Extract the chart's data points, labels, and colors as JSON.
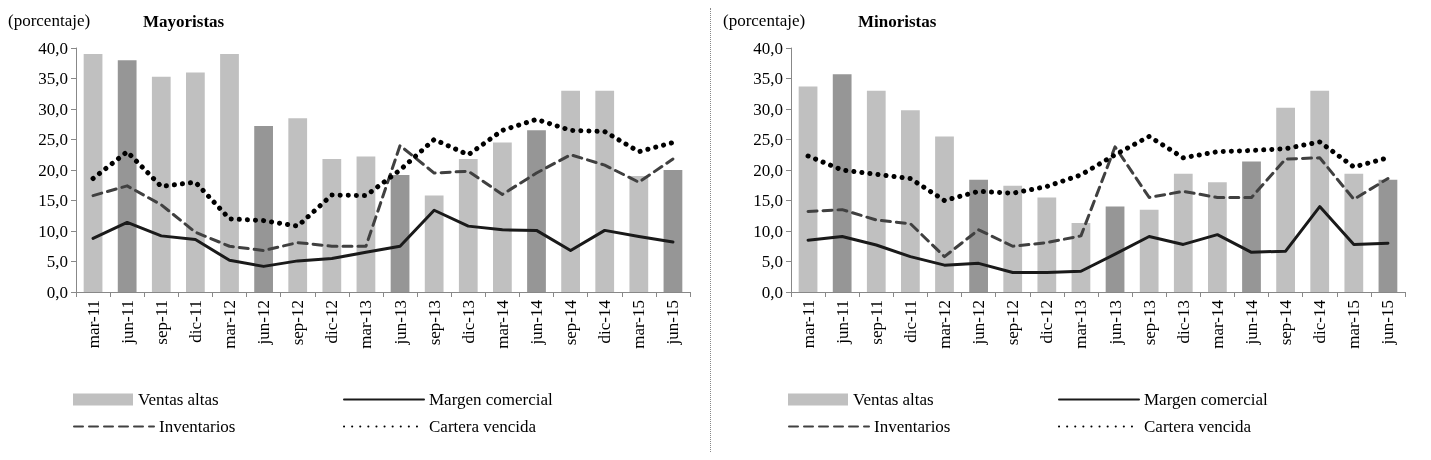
{
  "chart_data": [
    {
      "type": "bar",
      "title": "Mayoristas",
      "ylabel": "(porcentaje)",
      "legend": "bottom",
      "grid": false,
      "marker": "none",
      "categories": [
        "mar-11",
        "jun-11",
        "sep-11",
        "dic-11",
        "mar-12",
        "jun-12",
        "sep-12",
        "dic-12",
        "mar-13",
        "jun-13",
        "sep-13",
        "dic-13",
        "mar-14",
        "jun-14",
        "sep-14",
        "dic-14",
        "mar-15",
        "jun-15"
      ],
      "ylim": [
        0,
        40
      ],
      "yticks": [
        {
          "value": 0,
          "label": "0,0"
        },
        {
          "value": 5,
          "label": "5,0"
        },
        {
          "value": 10,
          "label": "10,0"
        },
        {
          "value": 15,
          "label": "15,0"
        },
        {
          "value": 20,
          "label": "20,0"
        },
        {
          "value": 25,
          "label": "25,0"
        },
        {
          "value": 30,
          "label": "30,0"
        },
        {
          "value": 35,
          "label": "35,0"
        },
        {
          "value": 40,
          "label": "40,0"
        }
      ],
      "series": [
        {
          "name": "Ventas altas",
          "color": "#c0c0c0",
          "colors": [
            "#c0c0c0",
            "#969696",
            "#c0c0c0",
            "#c0c0c0",
            "#c0c0c0",
            "#969696",
            "#c0c0c0",
            "#c0c0c0",
            "#c0c0c0",
            "#969696",
            "#c0c0c0",
            "#c0c0c0",
            "#c0c0c0",
            "#969696",
            "#c0c0c0",
            "#c0c0c0",
            "#c0c0c0",
            "#969696"
          ],
          "values": [
            39.0,
            38.0,
            35.3,
            36.0,
            39.0,
            27.2,
            28.5,
            21.8,
            22.2,
            19.2,
            15.8,
            21.8,
            24.5,
            26.5,
            33.0,
            33.0,
            19.0,
            20.0
          ]
        },
        {
          "name": "Margen comercial",
          "type": "line",
          "color": "#1a1a1a",
          "line_style": "solid",
          "values": [
            8.8,
            11.4,
            9.2,
            8.6,
            5.2,
            4.2,
            5.1,
            5.5,
            6.5,
            7.5,
            13.4,
            10.8,
            10.2,
            10.1,
            6.8,
            10.1,
            9.1,
            8.2
          ]
        },
        {
          "name": "Inventarios",
          "type": "line",
          "color": "#404040",
          "line_style": "dashed",
          "values": [
            15.8,
            17.4,
            14.3,
            9.8,
            7.5,
            6.8,
            8.1,
            7.5,
            7.5,
            24.0,
            19.5,
            19.8,
            16.0,
            19.5,
            22.5,
            20.8,
            18.0,
            21.8
          ]
        },
        {
          "name": "Cartera vencida",
          "type": "line",
          "color": "#000000",
          "line_style": "dotted",
          "values": [
            18.6,
            23.0,
            17.3,
            18.0,
            12.0,
            11.7,
            10.8,
            15.9,
            15.8,
            20.0,
            25.0,
            22.5,
            26.5,
            28.3,
            26.5,
            26.3,
            23.0,
            24.5
          ]
        }
      ]
    },
    {
      "type": "bar",
      "title": "Minoristas",
      "ylabel": "(porcentaje)",
      "legend": "bottom",
      "grid": false,
      "marker": "none",
      "categories": [
        "mar-11",
        "jun-11",
        "sep-11",
        "dic-11",
        "mar-12",
        "jun-12",
        "sep-12",
        "dic-12",
        "mar-13",
        "jun-13",
        "sep-13",
        "dic-13",
        "mar-14",
        "jun-14",
        "sep-14",
        "dic-14",
        "mar-15",
        "jun-15"
      ],
      "ylim": [
        0,
        40
      ],
      "yticks": [
        {
          "value": 0,
          "label": "0,0"
        },
        {
          "value": 5,
          "label": "5,0"
        },
        {
          "value": 10,
          "label": "10,0"
        },
        {
          "value": 15,
          "label": "15,0"
        },
        {
          "value": 20,
          "label": "20,0"
        },
        {
          "value": 25,
          "label": "25,0"
        },
        {
          "value": 30,
          "label": "30,0"
        },
        {
          "value": 35,
          "label": "35,0"
        },
        {
          "value": 40,
          "label": "40,0"
        }
      ],
      "series": [
        {
          "name": "Ventas altas",
          "color": "#c0c0c0",
          "colors": [
            "#c0c0c0",
            "#969696",
            "#c0c0c0",
            "#c0c0c0",
            "#c0c0c0",
            "#969696",
            "#c0c0c0",
            "#c0c0c0",
            "#c0c0c0",
            "#969696",
            "#c0c0c0",
            "#c0c0c0",
            "#c0c0c0",
            "#969696",
            "#c0c0c0",
            "#c0c0c0",
            "#c0c0c0",
            "#969696"
          ],
          "values": [
            33.7,
            35.7,
            33.0,
            29.8,
            25.5,
            18.4,
            17.4,
            15.5,
            11.3,
            14.0,
            13.5,
            19.4,
            18.0,
            21.4,
            30.2,
            33.0,
            19.4,
            18.4
          ]
        },
        {
          "name": "Margen comercial",
          "type": "line",
          "color": "#1a1a1a",
          "line_style": "solid",
          "values": [
            8.5,
            9.1,
            7.7,
            5.8,
            4.4,
            4.7,
            3.2,
            3.2,
            3.4,
            6.2,
            9.1,
            7.8,
            9.4,
            6.5,
            6.7,
            14.0,
            7.8,
            8.0
          ]
        },
        {
          "name": "Inventarios",
          "type": "line",
          "color": "#404040",
          "line_style": "dashed",
          "values": [
            13.2,
            13.5,
            11.8,
            11.2,
            5.8,
            10.2,
            7.5,
            8.1,
            9.2,
            23.8,
            15.5,
            16.5,
            15.5,
            15.5,
            21.8,
            22.0,
            15.2,
            18.6
          ]
        },
        {
          "name": "Cartera vencida",
          "type": "line",
          "color": "#000000",
          "line_style": "dotted",
          "values": [
            22.3,
            20.0,
            19.3,
            18.6,
            15.0,
            16.5,
            16.2,
            17.3,
            19.2,
            22.5,
            25.5,
            22.0,
            23.0,
            23.2,
            23.5,
            24.6,
            20.5,
            22.0
          ]
        }
      ]
    }
  ]
}
